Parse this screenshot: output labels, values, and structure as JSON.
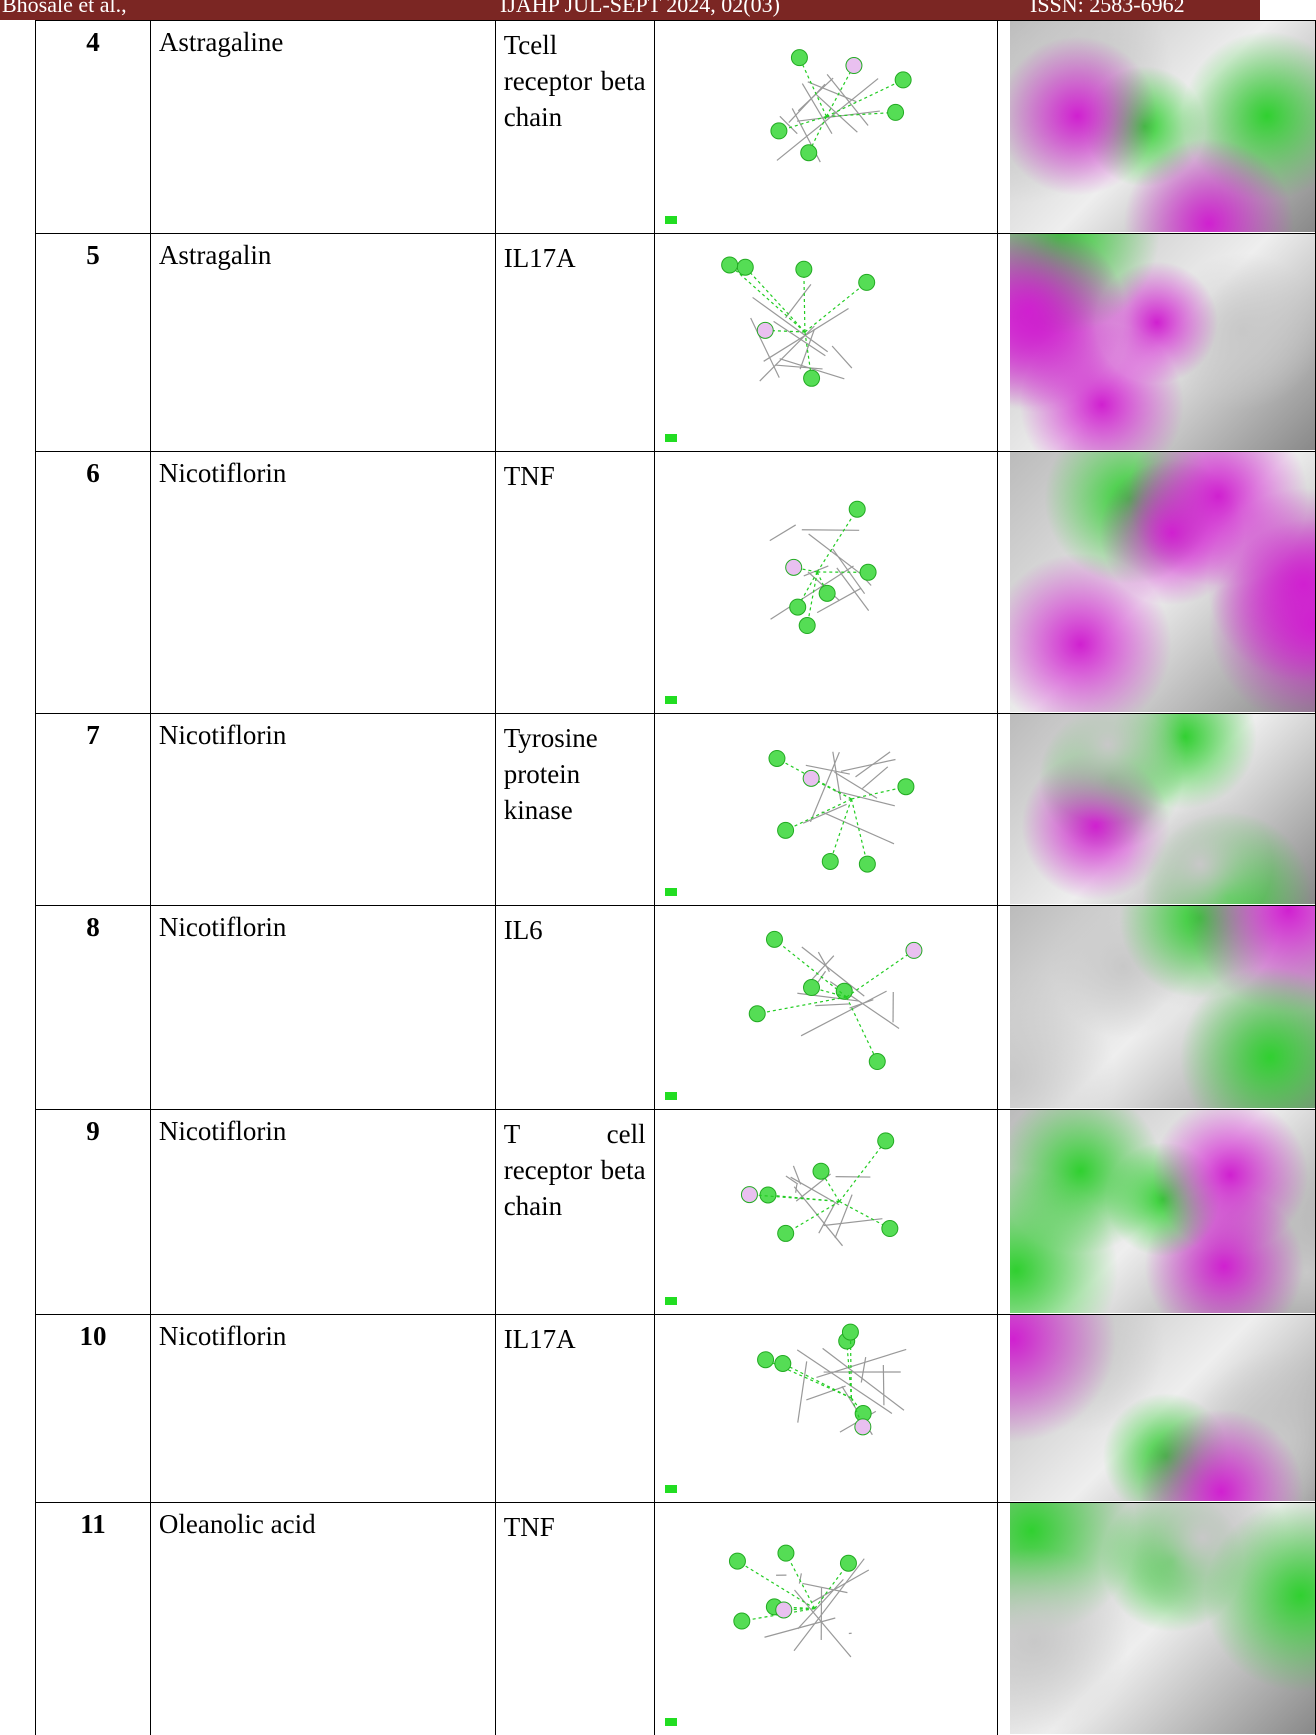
{
  "header": {
    "left": "Bhosale et al.,",
    "center": "IJAHP JUL-SEPT 2024, 02(03)",
    "right": "ISSN: 2583-6962"
  },
  "table": {
    "rows": [
      [
        "4",
        "Astragaline",
        "Tcell receptor beta chain"
      ],
      [
        "5",
        "Astragalin",
        "IL17A"
      ],
      [
        "6",
        "Nicotiflorin",
        "TNF"
      ],
      [
        "7",
        "Nicotiflorin",
        "Tyrosine protein kinase"
      ],
      [
        "8",
        "Nicotiflorin",
        "IL6"
      ],
      [
        "9",
        "Nicotiflorin",
        "T cell receptor beta chain"
      ],
      [
        "10",
        "Nicotiflorin",
        "IL17A"
      ],
      [
        "11",
        "Oleanolic acid",
        "TNF"
      ]
    ]
  }
}
